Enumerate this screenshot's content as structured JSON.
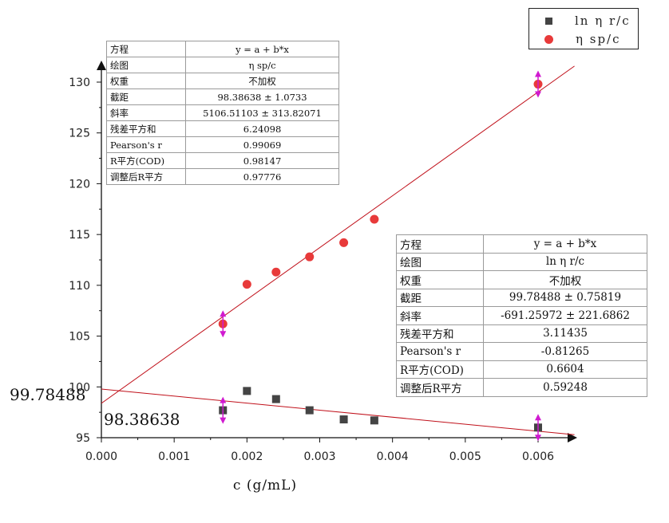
{
  "chart_data": {
    "type": "scatter",
    "xlabel": "c (g/mL)",
    "xlim": [
      0,
      0.0065
    ],
    "ylim": [
      95,
      131
    ],
    "x_ticks": [
      "0.000",
      "0.001",
      "0.002",
      "0.003",
      "0.004",
      "0.005",
      "0.006"
    ],
    "y_ticks": [
      "95",
      "100",
      "105",
      "110",
      "115",
      "120",
      "125",
      "130"
    ],
    "legend_position": "top-right",
    "series": [
      {
        "name": "ln η r/c",
        "marker": "square",
        "color": "#444444",
        "points": [
          {
            "x": 0.00167,
            "y": 97.7
          },
          {
            "x": 0.002,
            "y": 99.6
          },
          {
            "x": 0.0024,
            "y": 98.8
          },
          {
            "x": 0.00286,
            "y": 97.7
          },
          {
            "x": 0.00333,
            "y": 96.8
          },
          {
            "x": 0.00375,
            "y": 96.7
          },
          {
            "x": 0.006,
            "y": 96.0
          }
        ],
        "fit": {
          "intercept": 99.78488,
          "slope": -691.25972
        }
      },
      {
        "name": "η sp/c",
        "marker": "circle",
        "color": "#e83a3a",
        "points": [
          {
            "x": 0.00167,
            "y": 106.2
          },
          {
            "x": 0.002,
            "y": 110.1
          },
          {
            "x": 0.0024,
            "y": 111.3
          },
          {
            "x": 0.00286,
            "y": 112.8
          },
          {
            "x": 0.00333,
            "y": 114.2
          },
          {
            "x": 0.00375,
            "y": 116.5
          },
          {
            "x": 0.006,
            "y": 129.8
          }
        ],
        "fit": {
          "intercept": 98.38638,
          "slope": 5106.51103
        }
      }
    ],
    "annotations": [
      "99.78488",
      "98.38638"
    ]
  },
  "legend": {
    "items": [
      {
        "label": "ln η r/c",
        "marker": "square"
      },
      {
        "label": "η sp/c",
        "marker": "circle"
      }
    ]
  },
  "stats_table_sp": {
    "rows": [
      {
        "key": "方程",
        "value": "y = a + b*x"
      },
      {
        "key": "绘图",
        "value": "η sp/c"
      },
      {
        "key": "权重",
        "value": "不加权"
      },
      {
        "key": "截距",
        "value": "98.38638 ± 1.0733"
      },
      {
        "key": "斜率",
        "value": "5106.51103 ± 313.82071"
      },
      {
        "key": "残差平方和",
        "value": "6.24098"
      },
      {
        "key": "Pearson's r",
        "value": "0.99069"
      },
      {
        "key": "R平方(COD)",
        "value": "0.98147"
      },
      {
        "key": "调整后R平方",
        "value": "0.97776"
      }
    ]
  },
  "stats_table_r": {
    "rows": [
      {
        "key": "方程",
        "value": "y = a + b*x"
      },
      {
        "key": "绘图",
        "value": "ln η r/c"
      },
      {
        "key": "权重",
        "value": "不加权"
      },
      {
        "key": "截距",
        "value": "99.78488 ± 0.75819"
      },
      {
        "key": "斜率",
        "value": "-691.25972 ± 221.6862"
      },
      {
        "key": "残差平方和",
        "value": "3.11435"
      },
      {
        "key": "Pearson's r",
        "value": "-0.81265"
      },
      {
        "key": "R平方(COD)",
        "value": "0.6604"
      },
      {
        "key": "调整后R平方",
        "value": "0.59248"
      }
    ]
  }
}
